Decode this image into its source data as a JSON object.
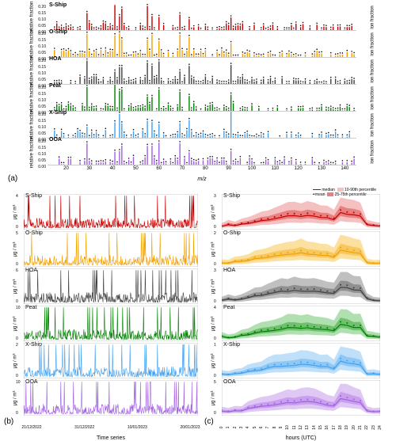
{
  "series": [
    {
      "name": "S-Ship",
      "color": "#c00000",
      "fill_light": "#f5c0c0",
      "fill_dark": "#e88080",
      "max_ts": 4,
      "max_diurnal": 3
    },
    {
      "name": "O-Ship",
      "color": "#f0a000",
      "fill_light": "#fce0a0",
      "fill_dark": "#f8c860",
      "max_ts": 5,
      "max_diurnal": 2
    },
    {
      "name": "HOA",
      "color": "#404040",
      "fill_light": "#c0c0c0",
      "fill_dark": "#909090",
      "max_ts": 6,
      "max_diurnal": 3
    },
    {
      "name": "Peat",
      "color": "#008000",
      "fill_light": "#b0e0b0",
      "fill_dark": "#70c070",
      "max_ts": 10,
      "max_diurnal": 4
    },
    {
      "name": "X-Ship",
      "color": "#40a0f0",
      "fill_light": "#c0e0fa",
      "fill_dark": "#90c8f5",
      "max_ts": 2,
      "max_diurnal": 1
    },
    {
      "name": "OOA",
      "color": "#a060e0",
      "fill_light": "#e0c8f5",
      "fill_dark": "#c8a0ee",
      "max_ts": 10,
      "max_diurnal": 5
    }
  ],
  "panel_a": {
    "y_label": "relative fraction",
    "y_label_right": "ion fraction",
    "x_label": "m/z",
    "x_ticks": [
      20,
      30,
      40,
      50,
      60,
      70,
      80,
      90,
      100,
      110,
      120,
      130,
      140
    ],
    "x_range": [
      12,
      145
    ],
    "y_ticks_per_row": [
      "0.20",
      "0.15",
      "0.10",
      "0.05",
      "0.00"
    ]
  },
  "panel_b": {
    "y_label": "μg / m³",
    "x_label": "Time series",
    "x_ticks": [
      "21/12/2022",
      "31/12/2022",
      "10/01/2023",
      "20/01/2023"
    ]
  },
  "panel_c": {
    "y_label": "μg / m³",
    "x_label": "hours (UTC)",
    "x_ticks": [
      0,
      1,
      2,
      3,
      4,
      5,
      6,
      7,
      8,
      9,
      10,
      11,
      12,
      13,
      14,
      15,
      16,
      17,
      18,
      19,
      20,
      21,
      22,
      23,
      24
    ],
    "legend": {
      "median": "median",
      "mean": "mean",
      "p10_90": "10-90th percentile",
      "p25_75": "25-75th percentile"
    }
  },
  "labels": {
    "a": "(a)",
    "b": "(b)",
    "c": "(c)"
  }
}
